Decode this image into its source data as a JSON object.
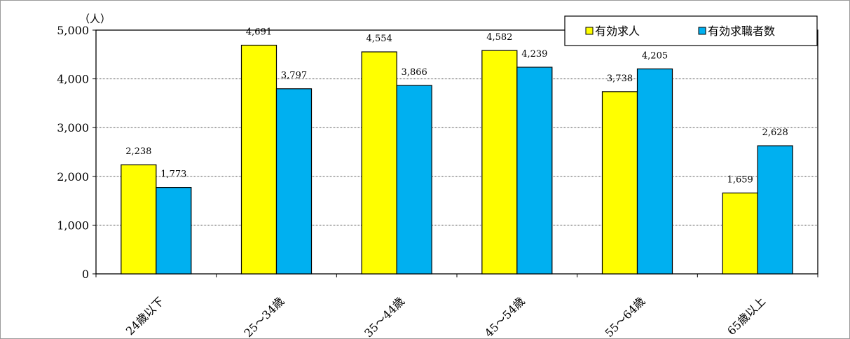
{
  "chart_data": {
    "type": "bar",
    "unit_label": "（人）",
    "categories": [
      "24歳以下",
      "25～34歳",
      "35～44歳",
      "45～54歳",
      "55～64歳",
      "65歳以上"
    ],
    "series": [
      {
        "name": "有効求人",
        "color": "#ffff00",
        "values": [
          2238,
          4691,
          4554,
          4582,
          3738,
          1659
        ]
      },
      {
        "name": "有効求職者数",
        "color": "#00b0f0",
        "values": [
          1773,
          3797,
          3866,
          4239,
          4205,
          2628
        ]
      }
    ],
    "value_labels": [
      [
        "2,238",
        "4,691",
        "4,554",
        "4,582",
        "3,738",
        "1,659"
      ],
      [
        "1,773",
        "3,797",
        "3,866",
        "4,239",
        "4,205",
        "2,628"
      ]
    ],
    "ylim": [
      0,
      5000
    ],
    "yticks": [
      0,
      1000,
      2000,
      3000,
      4000,
      5000
    ],
    "ytick_labels": [
      "0",
      "1,000",
      "2,000",
      "3,000",
      "4,000",
      "5,000"
    ],
    "grid": true,
    "legend_position": "top-right"
  }
}
